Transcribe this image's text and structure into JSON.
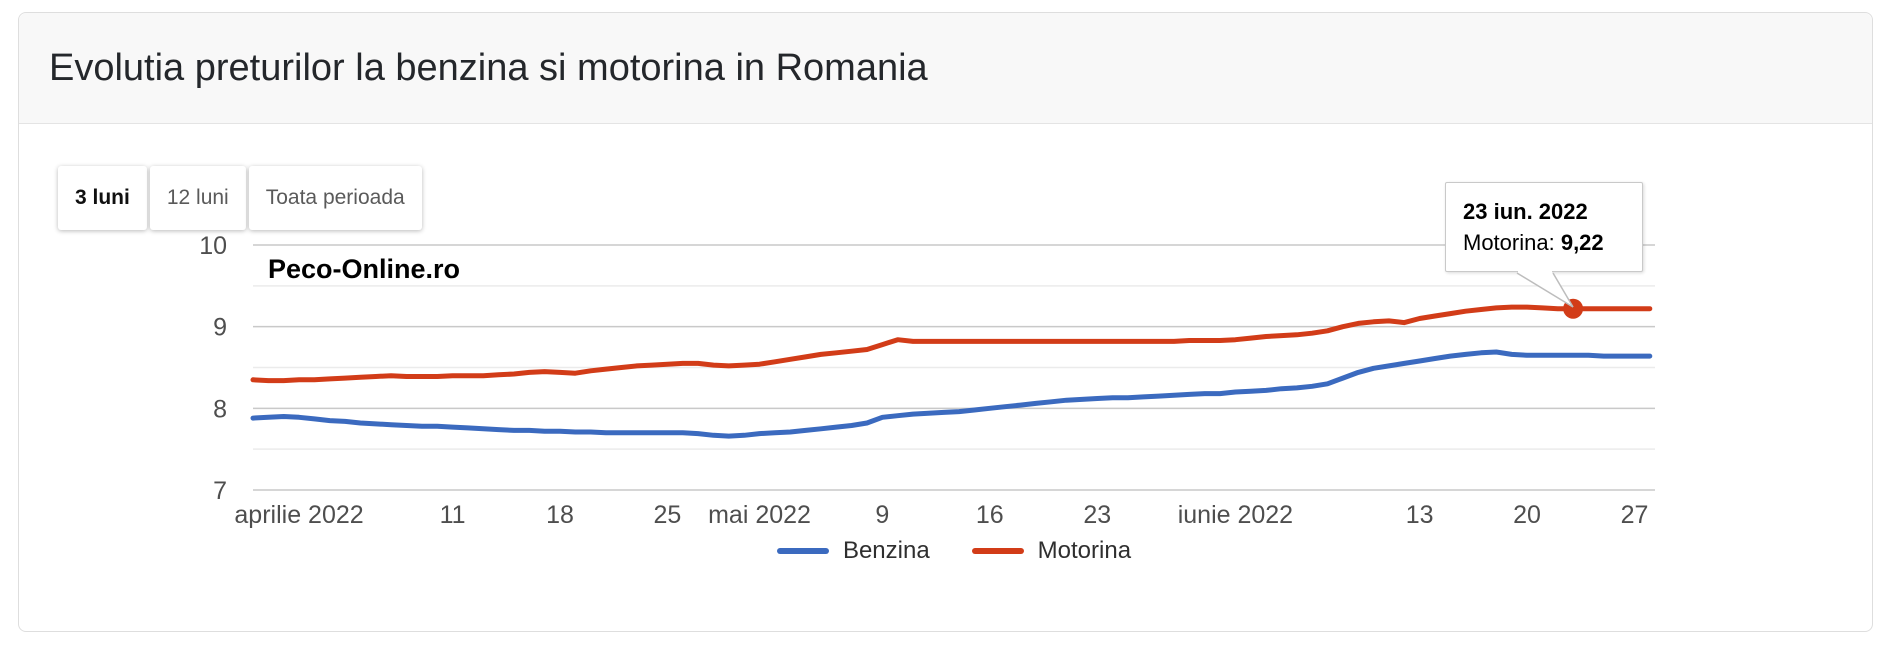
{
  "header": {
    "title": "Evolutia preturilor la benzina si motorina in Romania"
  },
  "controls": {
    "buttons": [
      {
        "label": "3 luni",
        "active": true
      },
      {
        "label": "12 luni",
        "active": false
      },
      {
        "label": "Toata perioada",
        "active": false
      }
    ]
  },
  "chart_data": {
    "type": "line",
    "watermark": "Peco-Online.ro",
    "start_date": "2022-03-29",
    "interval": "daily",
    "ylim": [
      7,
      10
    ],
    "y_major_ticks": [
      7,
      8,
      9,
      10
    ],
    "y_minor_gridlines": [
      7.5,
      8.5,
      9.5
    ],
    "grid": {
      "major_color": "#c9c9c9",
      "minor_color": "#ebebeb"
    },
    "x_ticks": [
      {
        "label": "aprilie 2022",
        "day": 3
      },
      {
        "label": "11",
        "day": 13
      },
      {
        "label": "18",
        "day": 20
      },
      {
        "label": "25",
        "day": 27
      },
      {
        "label": "mai 2022",
        "day": 33
      },
      {
        "label": "9",
        "day": 41
      },
      {
        "label": "16",
        "day": 48
      },
      {
        "label": "23",
        "day": 55
      },
      {
        "label": "iunie 2022",
        "day": 64
      },
      {
        "label": "13",
        "day": 76
      },
      {
        "label": "20",
        "day": 83
      },
      {
        "label": "27",
        "day": 90
      }
    ],
    "series": [
      {
        "name": "Benzina",
        "color": "#3b6abf",
        "values": [
          7.88,
          7.89,
          7.9,
          7.89,
          7.87,
          7.85,
          7.84,
          7.82,
          7.81,
          7.8,
          7.79,
          7.78,
          7.78,
          7.77,
          7.76,
          7.75,
          7.74,
          7.73,
          7.73,
          7.72,
          7.72,
          7.71,
          7.71,
          7.7,
          7.7,
          7.7,
          7.7,
          7.7,
          7.7,
          7.69,
          7.67,
          7.66,
          7.67,
          7.69,
          7.7,
          7.71,
          7.73,
          7.75,
          7.77,
          7.79,
          7.82,
          7.89,
          7.91,
          7.93,
          7.94,
          7.95,
          7.96,
          7.98,
          8.0,
          8.02,
          8.04,
          8.06,
          8.08,
          8.1,
          8.11,
          8.12,
          8.13,
          8.13,
          8.14,
          8.15,
          8.16,
          8.17,
          8.18,
          8.18,
          8.2,
          8.21,
          8.22,
          8.24,
          8.25,
          8.27,
          8.3,
          8.37,
          8.44,
          8.49,
          8.52,
          8.55,
          8.58,
          8.61,
          8.64,
          8.66,
          8.68,
          8.69,
          8.66,
          8.65,
          8.65,
          8.65,
          8.65,
          8.65,
          8.64,
          8.64,
          8.64,
          8.64
        ]
      },
      {
        "name": "Motorina",
        "color": "#d23c18",
        "values": [
          8.35,
          8.34,
          8.34,
          8.35,
          8.35,
          8.36,
          8.37,
          8.38,
          8.39,
          8.4,
          8.39,
          8.39,
          8.39,
          8.4,
          8.4,
          8.4,
          8.41,
          8.42,
          8.44,
          8.45,
          8.44,
          8.43,
          8.46,
          8.48,
          8.5,
          8.52,
          8.53,
          8.54,
          8.55,
          8.55,
          8.53,
          8.52,
          8.53,
          8.54,
          8.57,
          8.6,
          8.63,
          8.66,
          8.68,
          8.7,
          8.72,
          8.78,
          8.84,
          8.82,
          8.82,
          8.82,
          8.82,
          8.82,
          8.82,
          8.82,
          8.82,
          8.82,
          8.82,
          8.82,
          8.82,
          8.82,
          8.82,
          8.82,
          8.82,
          8.82,
          8.82,
          8.83,
          8.83,
          8.83,
          8.84,
          8.86,
          8.88,
          8.89,
          8.9,
          8.92,
          8.95,
          9.0,
          9.04,
          9.06,
          9.07,
          9.05,
          9.1,
          9.13,
          9.16,
          9.19,
          9.21,
          9.23,
          9.24,
          9.24,
          9.23,
          9.22,
          9.22,
          9.22,
          9.22,
          9.22,
          9.22,
          9.22
        ]
      }
    ],
    "highlight": {
      "series": "Motorina",
      "day": 86,
      "value": 9.22
    }
  },
  "tooltip": {
    "date": "23 iun. 2022",
    "series_label": "Motorina: ",
    "value": "9,22"
  },
  "legend": [
    {
      "label": "Benzina",
      "color": "#3b6abf"
    },
    {
      "label": "Motorina",
      "color": "#d23c18"
    }
  ]
}
